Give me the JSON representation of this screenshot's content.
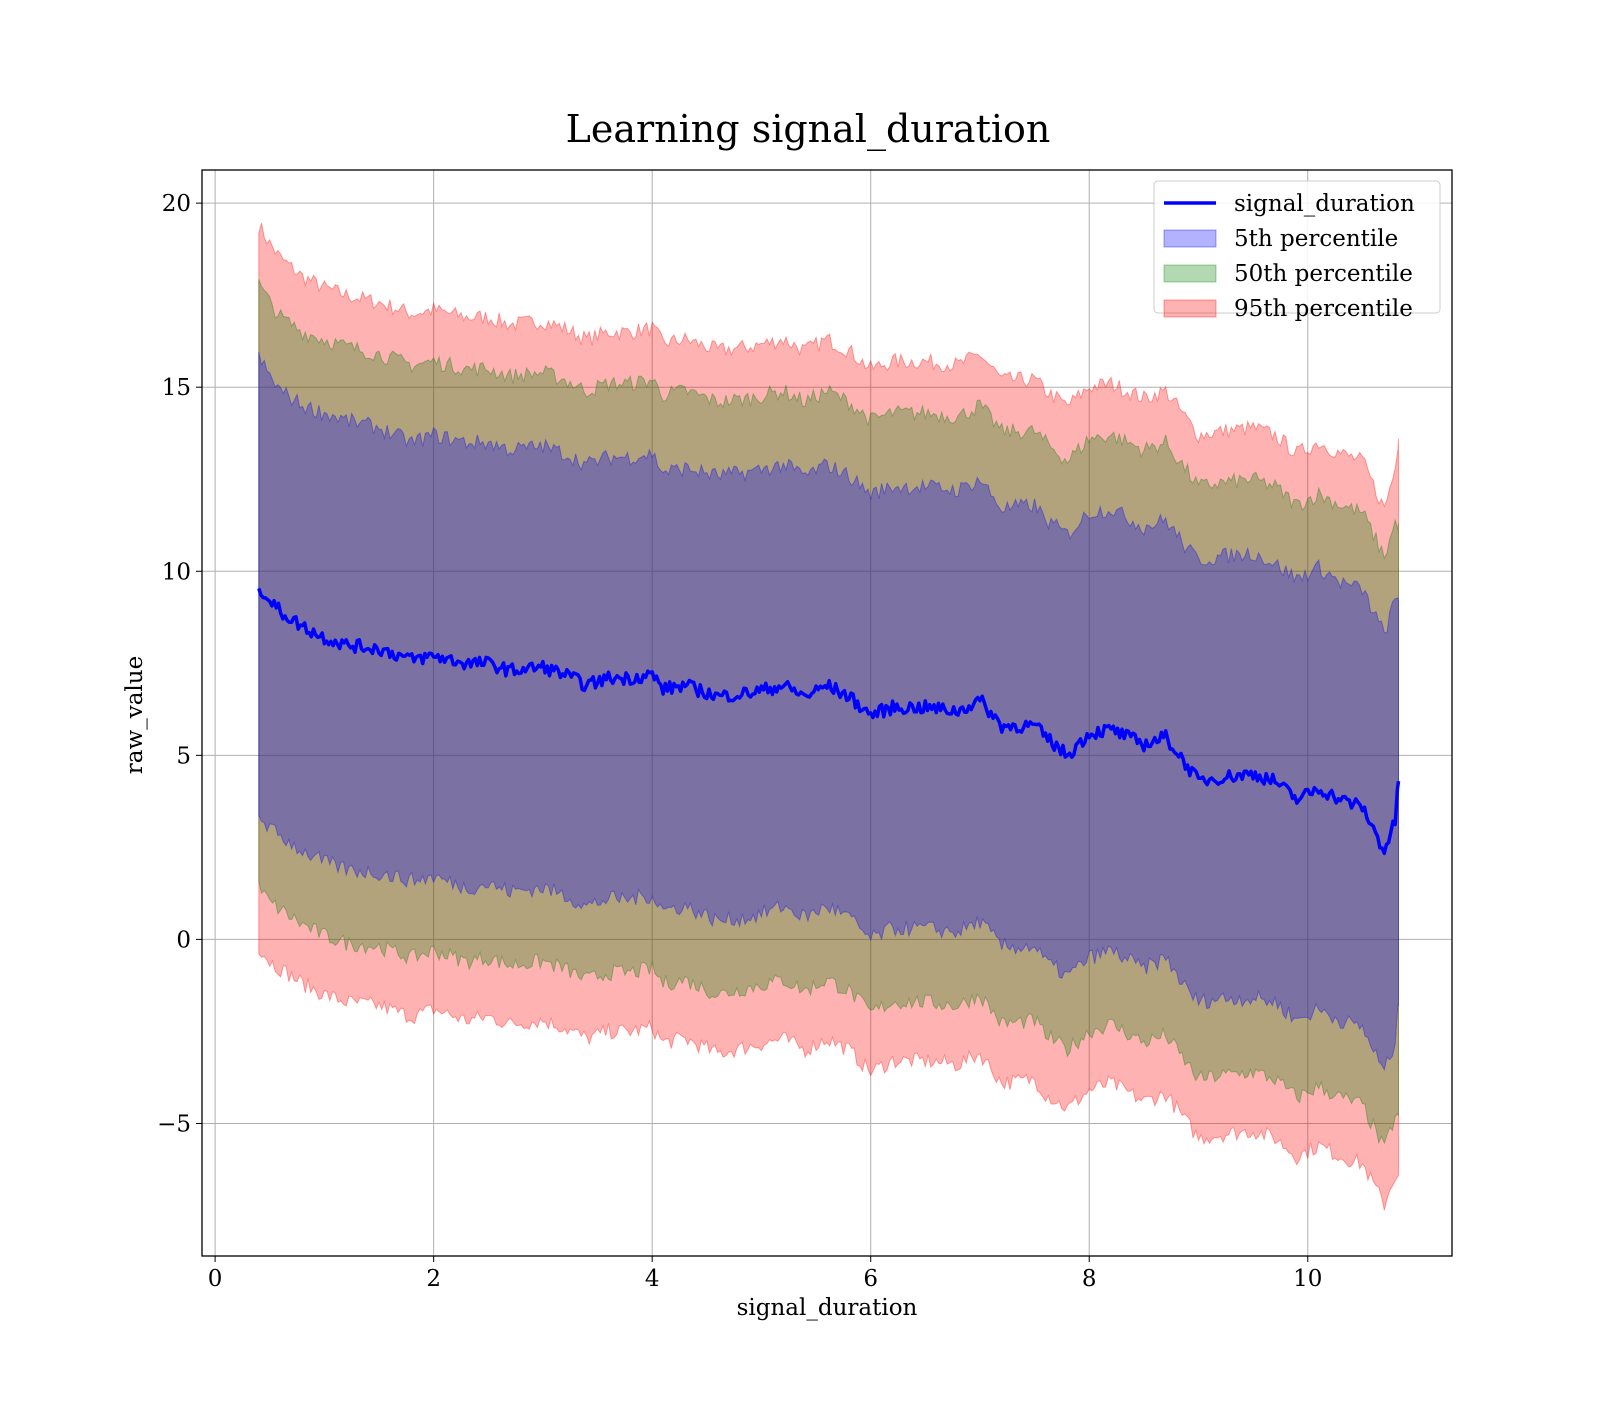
{
  "chart_data": {
    "type": "area",
    "title": "Learning signal_duration",
    "xlabel": "signal_duration",
    "ylabel": "raw_value",
    "xlim": [
      -0.12,
      11.32
    ],
    "ylim": [
      -8.6,
      20.9
    ],
    "xticks": [
      0,
      2,
      4,
      6,
      8,
      10
    ],
    "xtick_labels": [
      "0",
      "2",
      "4",
      "6",
      "8",
      "10"
    ],
    "yticks": [
      -5,
      0,
      5,
      10,
      15,
      20
    ],
    "ytick_labels": [
      "−5",
      "0",
      "5",
      "10",
      "15",
      "20"
    ],
    "grid": true,
    "legend_position": "top-right",
    "series": [
      {
        "name": "signal_duration",
        "kind": "line",
        "color": "#0000ff",
        "x": [
          0.4,
          0.5,
          0.6,
          0.8,
          1.0,
          1.2,
          1.5,
          1.8,
          2.0,
          2.3,
          2.5,
          2.7,
          3.0,
          3.2,
          3.4,
          3.6,
          3.8,
          4.0,
          4.1,
          4.3,
          4.6,
          4.9,
          5.2,
          5.4,
          5.6,
          5.8,
          6.0,
          6.2,
          6.5,
          6.8,
          7.0,
          7.2,
          7.5,
          7.6,
          7.8,
          8.0,
          8.2,
          8.5,
          8.7,
          8.9,
          9.0,
          9.2,
          9.5,
          9.7,
          9.9,
          10.1,
          10.3,
          10.5,
          10.7,
          10.8,
          10.83
        ],
        "values": [
          9.6,
          9.2,
          8.9,
          8.5,
          8.2,
          8.0,
          7.9,
          7.6,
          7.7,
          7.5,
          7.5,
          7.3,
          7.4,
          7.2,
          6.9,
          7.1,
          7.1,
          7.2,
          6.8,
          6.9,
          6.6,
          6.7,
          6.9,
          6.6,
          6.9,
          6.6,
          6.1,
          6.3,
          6.3,
          6.2,
          6.5,
          5.8,
          5.8,
          5.5,
          5.0,
          5.6,
          5.7,
          5.3,
          5.5,
          4.7,
          4.3,
          4.4,
          4.5,
          4.3,
          3.8,
          4.1,
          3.8,
          3.6,
          2.4,
          3.2,
          4.3
        ]
      },
      {
        "name": "5th percentile",
        "kind": "band",
        "color": "#0000ff",
        "x": [
          0.4,
          0.5,
          0.6,
          0.8,
          1.0,
          1.2,
          1.5,
          1.8,
          2.0,
          2.3,
          2.5,
          2.7,
          3.0,
          3.2,
          3.4,
          3.6,
          3.8,
          4.0,
          4.1,
          4.3,
          4.6,
          4.9,
          5.2,
          5.4,
          5.6,
          5.8,
          6.0,
          6.2,
          6.5,
          6.8,
          7.0,
          7.2,
          7.5,
          7.6,
          7.8,
          8.0,
          8.2,
          8.5,
          8.7,
          8.9,
          9.0,
          9.2,
          9.5,
          9.7,
          9.9,
          10.1,
          10.3,
          10.5,
          10.7,
          10.8,
          10.83
        ],
        "upper": [
          15.8,
          15.3,
          14.9,
          14.5,
          14.3,
          14.1,
          13.9,
          13.5,
          13.7,
          13.5,
          13.5,
          13.3,
          13.4,
          13.2,
          12.9,
          13.1,
          13.1,
          13.2,
          12.7,
          12.8,
          12.6,
          12.7,
          12.9,
          12.6,
          12.9,
          12.6,
          12.1,
          12.3,
          12.3,
          12.2,
          12.5,
          11.7,
          11.8,
          11.4,
          11.0,
          11.6,
          11.7,
          11.2,
          11.4,
          10.6,
          10.3,
          10.4,
          10.5,
          10.2,
          9.8,
          10.1,
          9.7,
          9.5,
          8.3,
          9.2,
          9.2
        ],
        "lower": [
          3.4,
          3.0,
          2.8,
          2.4,
          2.1,
          1.9,
          1.8,
          1.6,
          1.7,
          1.4,
          1.5,
          1.3,
          1.4,
          1.2,
          0.9,
          1.1,
          1.1,
          1.2,
          0.8,
          0.9,
          0.5,
          0.6,
          0.9,
          0.6,
          0.9,
          0.6,
          0.0,
          0.3,
          0.3,
          0.2,
          0.5,
          -0.2,
          -0.2,
          -0.6,
          -1.0,
          -0.5,
          -0.3,
          -0.8,
          -0.5,
          -1.4,
          -1.7,
          -1.6,
          -1.6,
          -1.7,
          -2.2,
          -1.9,
          -2.2,
          -2.4,
          -3.6,
          -2.8,
          -1.8
        ]
      },
      {
        "name": "50th percentile",
        "kind": "band",
        "color": "#008000",
        "x": [
          0.4,
          0.5,
          0.6,
          0.8,
          1.0,
          1.2,
          1.5,
          1.8,
          2.0,
          2.3,
          2.5,
          2.7,
          3.0,
          3.2,
          3.4,
          3.6,
          3.8,
          4.0,
          4.1,
          4.3,
          4.6,
          4.9,
          5.2,
          5.4,
          5.6,
          5.8,
          6.0,
          6.2,
          6.5,
          6.8,
          7.0,
          7.2,
          7.5,
          7.6,
          7.8,
          8.0,
          8.2,
          8.5,
          8.7,
          8.9,
          9.0,
          9.2,
          9.5,
          9.7,
          9.9,
          10.1,
          10.3,
          10.5,
          10.7,
          10.8,
          10.83
        ],
        "upper": [
          17.8,
          17.3,
          16.9,
          16.5,
          16.3,
          16.1,
          15.9,
          15.6,
          15.7,
          15.5,
          15.5,
          15.3,
          15.4,
          15.2,
          14.9,
          15.1,
          15.1,
          15.2,
          14.8,
          14.9,
          14.6,
          14.7,
          14.9,
          14.6,
          14.9,
          14.6,
          14.1,
          14.3,
          14.3,
          14.2,
          14.5,
          13.8,
          13.8,
          13.5,
          13.0,
          13.6,
          13.7,
          13.3,
          13.5,
          12.7,
          12.3,
          12.4,
          12.5,
          12.3,
          11.8,
          12.1,
          11.8,
          11.6,
          10.4,
          11.3,
          11.3
        ],
        "lower": [
          1.4,
          1.0,
          0.8,
          0.4,
          0.1,
          -0.1,
          -0.2,
          -0.5,
          -0.3,
          -0.6,
          -0.5,
          -0.7,
          -0.6,
          -0.8,
          -1.1,
          -0.9,
          -0.9,
          -0.8,
          -1.2,
          -1.1,
          -1.5,
          -1.3,
          -1.1,
          -1.4,
          -1.1,
          -1.4,
          -2.0,
          -1.7,
          -1.7,
          -1.8,
          -1.5,
          -2.3,
          -2.2,
          -2.6,
          -3.0,
          -2.5,
          -2.3,
          -2.8,
          -2.6,
          -3.4,
          -3.8,
          -3.7,
          -3.6,
          -3.8,
          -4.3,
          -4.0,
          -4.3,
          -4.5,
          -5.7,
          -4.8,
          -4.8
        ]
      },
      {
        "name": "95th percentile",
        "kind": "band",
        "color": "#ff0000",
        "x": [
          0.4,
          0.5,
          0.6,
          0.8,
          1.0,
          1.2,
          1.5,
          1.8,
          2.0,
          2.3,
          2.5,
          2.7,
          3.0,
          3.2,
          3.4,
          3.6,
          3.8,
          4.0,
          4.1,
          4.3,
          4.6,
          4.9,
          5.2,
          5.4,
          5.6,
          5.8,
          6.0,
          6.2,
          6.5,
          6.8,
          7.0,
          7.2,
          7.5,
          7.6,
          7.8,
          8.0,
          8.2,
          8.5,
          8.7,
          8.9,
          9.0,
          9.2,
          9.5,
          9.7,
          9.9,
          10.1,
          10.3,
          10.5,
          10.7,
          10.8,
          10.83
        ],
        "upper": [
          19.4,
          18.9,
          18.5,
          18.0,
          17.7,
          17.5,
          17.3,
          17.0,
          17.1,
          16.9,
          16.9,
          16.7,
          16.8,
          16.6,
          16.3,
          16.5,
          16.5,
          16.6,
          16.2,
          16.3,
          16.0,
          16.1,
          16.3,
          16.0,
          16.3,
          16.0,
          15.5,
          15.7,
          15.7,
          15.6,
          15.9,
          15.2,
          15.2,
          14.9,
          14.5,
          15.0,
          15.1,
          14.7,
          14.9,
          14.1,
          13.7,
          13.8,
          13.9,
          13.7,
          13.2,
          13.5,
          13.2,
          13.0,
          11.7,
          12.8,
          13.6
        ],
        "lower": [
          -0.2,
          -0.6,
          -0.8,
          -1.2,
          -1.5,
          -1.7,
          -1.8,
          -2.1,
          -1.9,
          -2.2,
          -2.1,
          -2.3,
          -2.2,
          -2.4,
          -2.7,
          -2.5,
          -2.5,
          -2.4,
          -2.8,
          -2.7,
          -3.1,
          -2.9,
          -2.7,
          -3.0,
          -2.7,
          -3.0,
          -3.6,
          -3.3,
          -3.3,
          -3.4,
          -3.1,
          -3.9,
          -3.8,
          -4.2,
          -4.6,
          -4.1,
          -3.9,
          -4.4,
          -4.2,
          -5.0,
          -5.4,
          -5.3,
          -5.2,
          -5.4,
          -5.9,
          -5.6,
          -5.9,
          -6.1,
          -7.2,
          -6.4,
          -6.4
        ]
      }
    ]
  }
}
